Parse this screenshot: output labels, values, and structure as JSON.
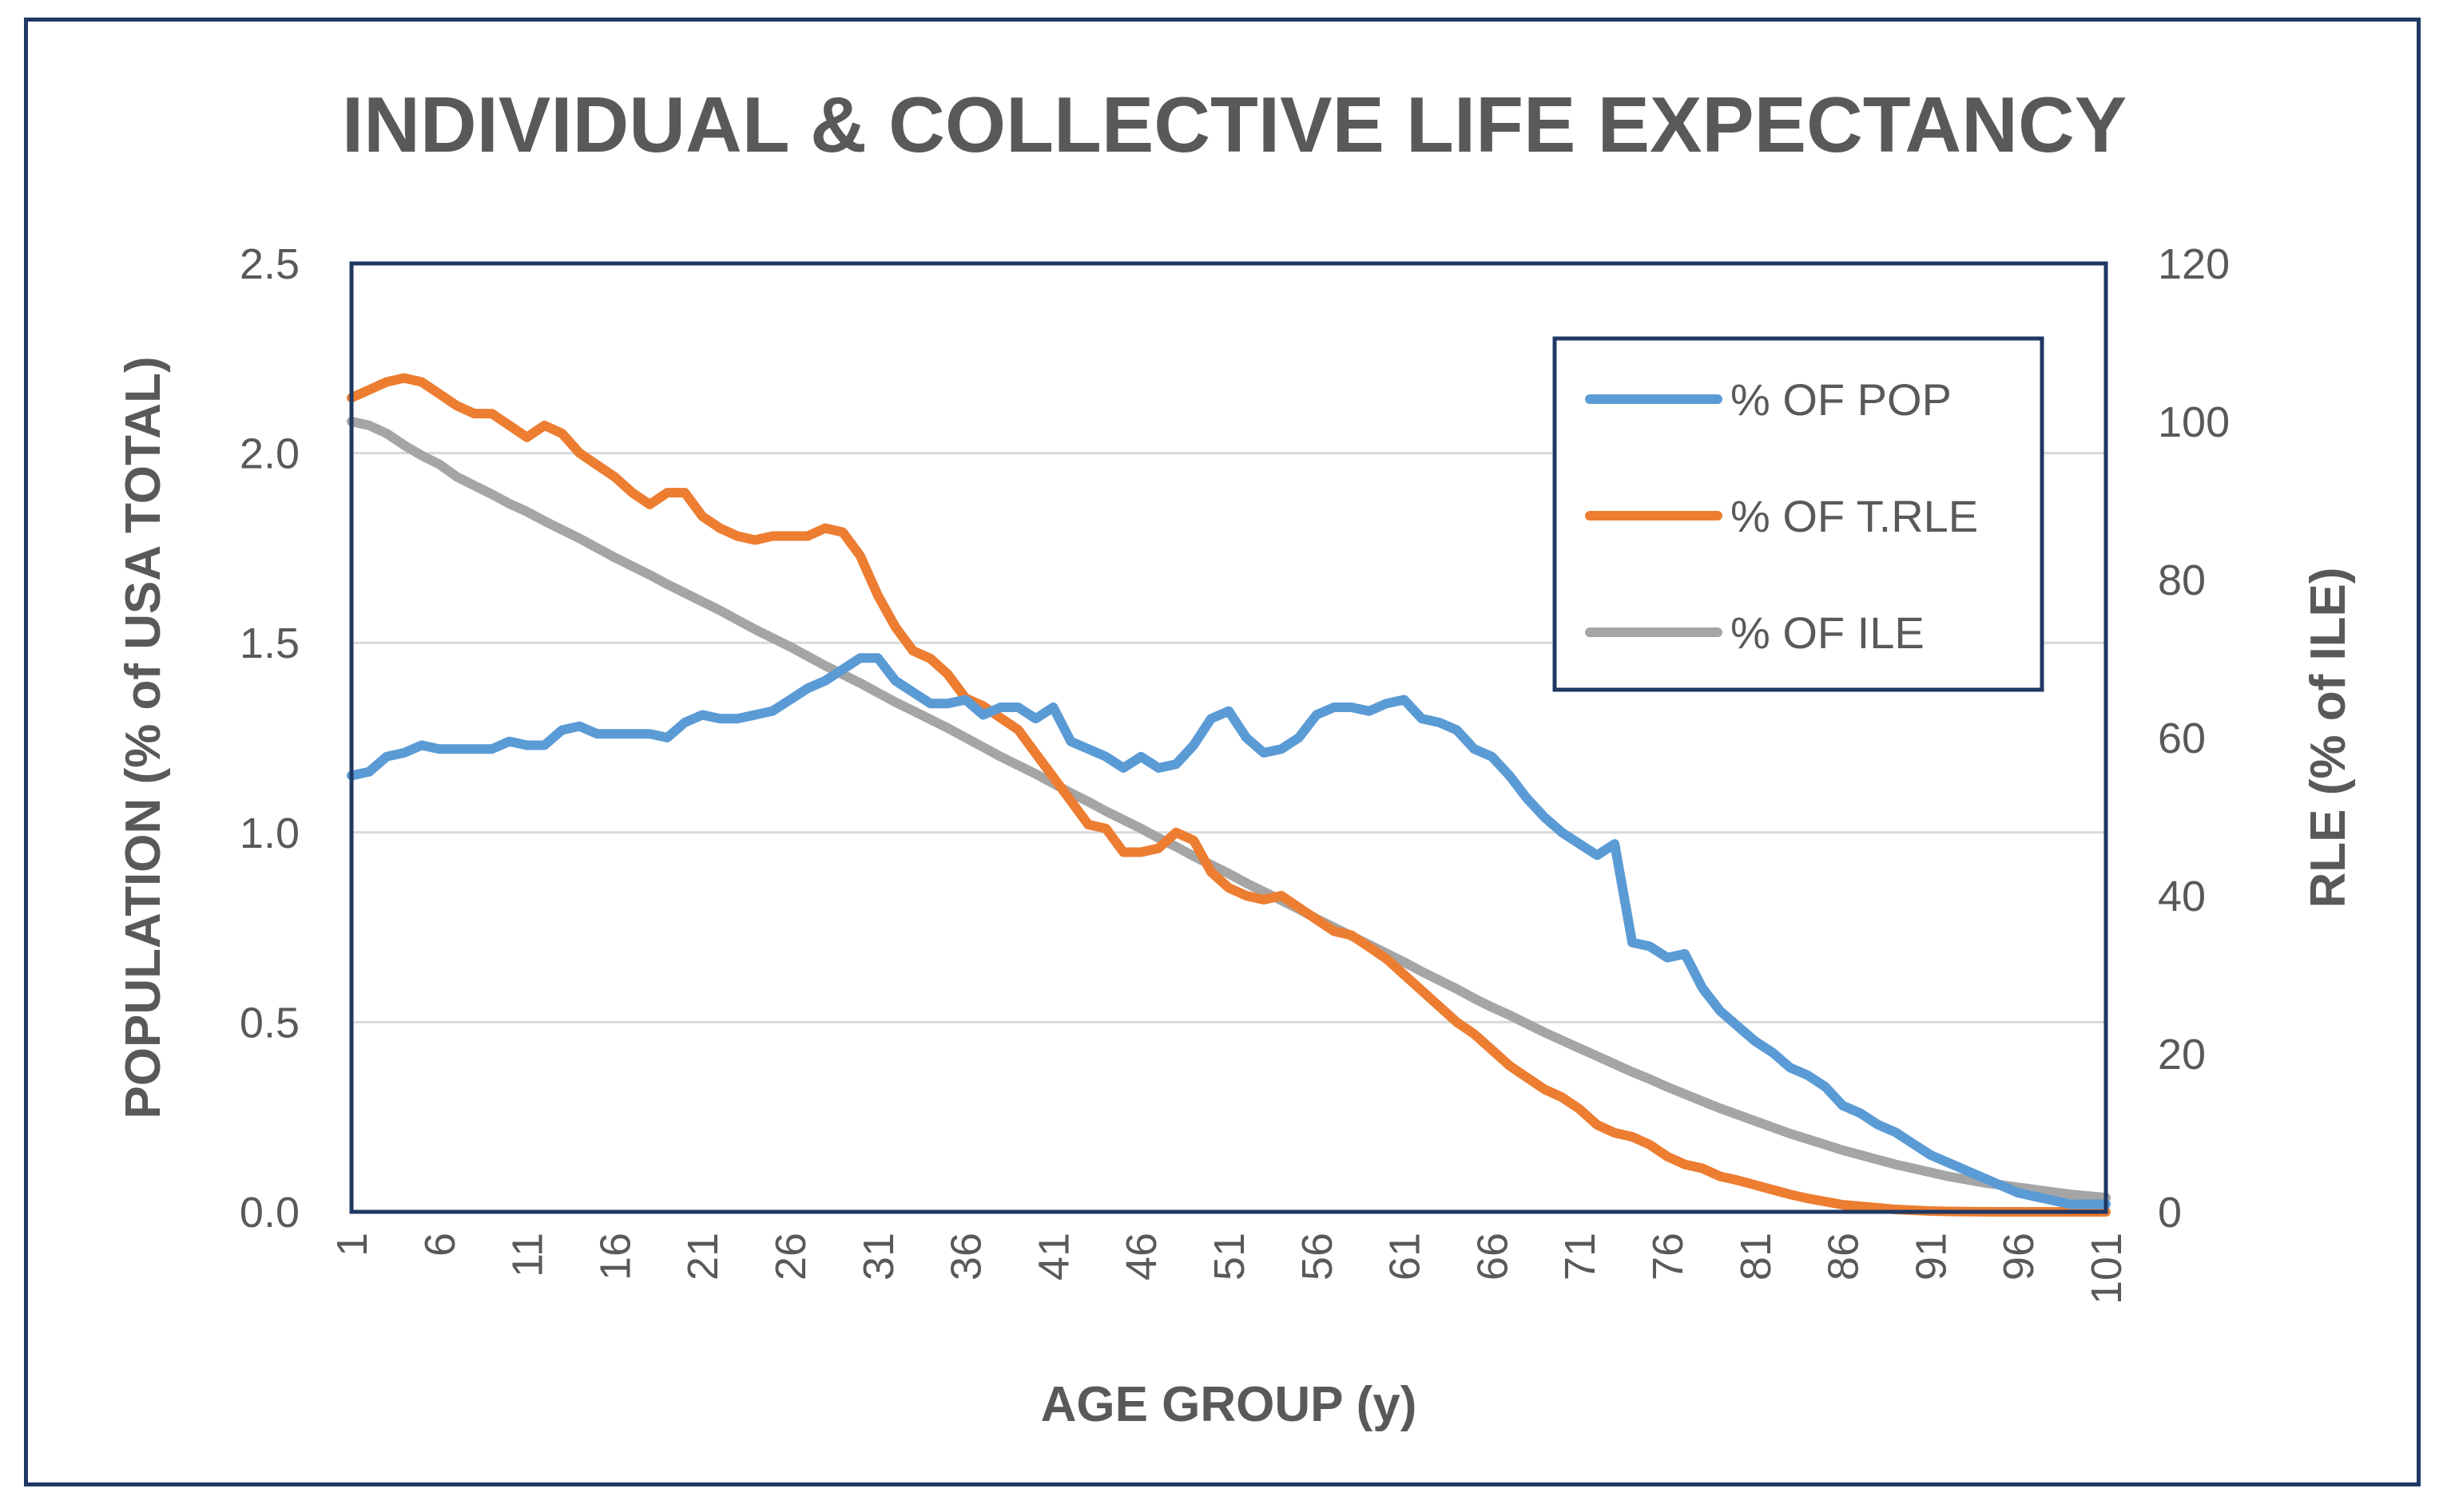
{
  "chart_data": {
    "type": "line",
    "title": "INDIVIDUAL & COLLECTIVE LIFE EXPECTANCY",
    "xlabel": "AGE GROUP (y)",
    "ylabel": "POPULATION (% of USA TOTAL)",
    "y2label": "RLE (% of ILE)",
    "x": [
      1,
      2,
      3,
      4,
      5,
      6,
      7,
      8,
      9,
      10,
      11,
      12,
      13,
      14,
      15,
      16,
      17,
      18,
      19,
      20,
      21,
      22,
      23,
      24,
      25,
      26,
      27,
      28,
      29,
      30,
      31,
      32,
      33,
      34,
      35,
      36,
      37,
      38,
      39,
      40,
      41,
      42,
      43,
      44,
      45,
      46,
      47,
      48,
      49,
      50,
      51,
      52,
      53,
      54,
      55,
      56,
      57,
      58,
      59,
      60,
      61,
      62,
      63,
      64,
      65,
      66,
      67,
      68,
      69,
      70,
      71,
      72,
      73,
      74,
      75,
      76,
      77,
      78,
      79,
      80,
      81,
      82,
      83,
      84,
      85,
      86,
      87,
      88,
      89,
      90,
      91,
      92,
      93,
      94,
      95,
      96,
      97,
      98,
      99,
      100,
      101
    ],
    "x_tick_labels": [
      "1",
      "6",
      "11",
      "16",
      "21",
      "26",
      "31",
      "36",
      "41",
      "46",
      "51",
      "56",
      "61",
      "66",
      "71",
      "76",
      "81",
      "86",
      "91",
      "96",
      "101"
    ],
    "x_tick_values": [
      1,
      6,
      11,
      16,
      21,
      26,
      31,
      36,
      41,
      46,
      51,
      56,
      61,
      66,
      71,
      76,
      81,
      86,
      91,
      96,
      101
    ],
    "ylim": [
      0,
      2.5
    ],
    "y_ticks": [
      "0.0",
      "0.5",
      "1.0",
      "1.5",
      "2.0",
      "2.5"
    ],
    "y_tick_values": [
      0,
      0.5,
      1.0,
      1.5,
      2.0,
      2.5
    ],
    "y2lim": [
      0,
      120
    ],
    "y2_ticks": [
      "0",
      "20",
      "40",
      "60",
      "80",
      "100",
      "120"
    ],
    "y2_tick_values": [
      0,
      20,
      40,
      60,
      80,
      100,
      120
    ],
    "grid": true,
    "legend_position": "top-right",
    "series": [
      {
        "name": "% OF POP",
        "axis": "left",
        "color": "#5b9bd5",
        "values": [
          1.15,
          1.16,
          1.2,
          1.21,
          1.23,
          1.22,
          1.22,
          1.22,
          1.22,
          1.24,
          1.23,
          1.23,
          1.27,
          1.28,
          1.26,
          1.26,
          1.26,
          1.26,
          1.25,
          1.29,
          1.31,
          1.3,
          1.3,
          1.31,
          1.32,
          1.35,
          1.38,
          1.4,
          1.43,
          1.46,
          1.46,
          1.4,
          1.37,
          1.34,
          1.34,
          1.35,
          1.31,
          1.33,
          1.33,
          1.3,
          1.33,
          1.24,
          1.22,
          1.2,
          1.17,
          1.2,
          1.17,
          1.18,
          1.23,
          1.3,
          1.32,
          1.25,
          1.21,
          1.22,
          1.25,
          1.31,
          1.33,
          1.33,
          1.32,
          1.34,
          1.35,
          1.3,
          1.29,
          1.27,
          1.22,
          1.2,
          1.15,
          1.09,
          1.04,
          1.0,
          0.97,
          0.94,
          0.97,
          0.71,
          0.7,
          0.67,
          0.68,
          0.59,
          0.53,
          0.49,
          0.45,
          0.42,
          0.38,
          0.36,
          0.33,
          0.28,
          0.26,
          0.23,
          0.21,
          0.18,
          0.15,
          0.13,
          0.11,
          0.09,
          0.07,
          0.05,
          0.04,
          0.03,
          0.02,
          0.02,
          0.02
        ]
      },
      {
        "name": "% OF T.RLE",
        "axis": "right",
        "color": "#ed7d31",
        "values": [
          103,
          104,
          105,
          105.5,
          105,
          103.5,
          102,
          101,
          101,
          99.5,
          98,
          99.5,
          98.5,
          96,
          94.5,
          93,
          91,
          89.5,
          91,
          91,
          88,
          86.5,
          85.5,
          85,
          85.5,
          85.5,
          85.5,
          86.5,
          86,
          83,
          78,
          74,
          71,
          70,
          68,
          65,
          64,
          62.5,
          61,
          58,
          55,
          52,
          49,
          48.5,
          45.5,
          45.5,
          46,
          48,
          47,
          43,
          41,
          40,
          39.5,
          40,
          38.5,
          37,
          35.5,
          35,
          33.5,
          32,
          30,
          28,
          26,
          24,
          22.5,
          20.5,
          18.5,
          17,
          15.5,
          14.5,
          13,
          11,
          10,
          9.5,
          8.5,
          7,
          6,
          5.5,
          4.5,
          4,
          3.4,
          2.8,
          2.2,
          1.7,
          1.3,
          0.9,
          0.7,
          0.5,
          0.3,
          0.2,
          0.1,
          0.05,
          0.02,
          0.01,
          0,
          0,
          0,
          0,
          0,
          0,
          0
        ]
      },
      {
        "name": "% OF  ILE",
        "axis": "right",
        "color": "#a5a5a5",
        "values": [
          100,
          99.5,
          98.5,
          97,
          95.7,
          94.6,
          93,
          91.9,
          90.8,
          89.6,
          88.6,
          87.4,
          86.3,
          85.2,
          84,
          82.8,
          81.7,
          80.6,
          79.4,
          78.3,
          77.2,
          76.1,
          74.9,
          73.7,
          72.6,
          71.5,
          70.3,
          69.1,
          68,
          66.9,
          65.7,
          64.5,
          63.4,
          62.3,
          61.2,
          60,
          58.8,
          57.6,
          56.5,
          55.4,
          54.2,
          53,
          51.9,
          50.7,
          49.6,
          48.5,
          47.3,
          46.2,
          45,
          43.9,
          42.8,
          41.6,
          40.5,
          39.4,
          38.3,
          37.1,
          36,
          34.9,
          33.8,
          32.7,
          31.6,
          30.4,
          29.3,
          28.2,
          27,
          25.9,
          24.9,
          23.8,
          22.7,
          21.7,
          20.7,
          19.7,
          18.7,
          17.7,
          16.8,
          15.8,
          14.9,
          14,
          13.1,
          12.3,
          11.5,
          10.7,
          9.9,
          9.2,
          8.5,
          7.8,
          7.2,
          6.6,
          6,
          5.5,
          5,
          4.5,
          4.1,
          3.7,
          3.4,
          3.1,
          2.8,
          2.5,
          2.2,
          2,
          1.8
        ]
      }
    ]
  }
}
